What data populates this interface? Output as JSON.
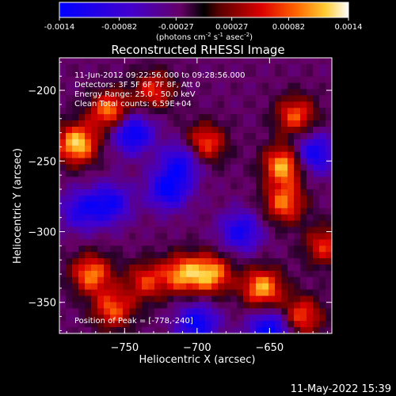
{
  "chart_data": {
    "type": "heatmap",
    "title": "Reconstructed RHESSI Image",
    "xlabel": "Heliocentric X (arcsec)",
    "ylabel": "Heliocentric Y (arcsec)",
    "xlim": [
      -795,
      -607
    ],
    "ylim": [
      -372,
      -177
    ],
    "xticks": [
      -750,
      -700,
      -650
    ],
    "yticks": [
      -200,
      -250,
      -300,
      -350
    ],
    "colorbar": {
      "ticks": [
        "-0.0014",
        "-0.00082",
        "-0.00027",
        "0.00027",
        "0.00082",
        "0.0014"
      ],
      "range": [
        -0.0014,
        0.0014
      ],
      "label_prefix": "(photons cm",
      "label_exp1": "-2",
      "label_mid1": " s",
      "label_exp2": "-1",
      "label_mid2": " asec",
      "label_exp3": "-2",
      "label_suffix": ")"
    },
    "annotations": [
      "11-Jun-2012 09:22:56.000 to 09:28:56.000",
      "Detectors: 3F 5F 6F 7F 8F, Att 0",
      "Energy Range: 25.0 - 50.0 keV",
      "Clean    Total counts: 6.59E+04"
    ],
    "peak_text": "Position of Peak = [-778,-240]",
    "bright_regions": [
      {
        "x": -783,
        "y": -238,
        "intensity": 1.0
      },
      {
        "x": -760,
        "y": -215,
        "intensity": 0.85
      },
      {
        "x": -695,
        "y": -238,
        "intensity": 0.75
      },
      {
        "x": -640,
        "y": -253,
        "intensity": 0.95
      },
      {
        "x": -632,
        "y": -218,
        "intensity": 0.7
      },
      {
        "x": -690,
        "y": -330,
        "intensity": 0.85
      },
      {
        "x": -710,
        "y": -330,
        "intensity": 0.8
      },
      {
        "x": -655,
        "y": -340,
        "intensity": 0.9
      },
      {
        "x": -640,
        "y": -280,
        "intensity": 0.75
      },
      {
        "x": -628,
        "y": -360,
        "intensity": 0.7
      },
      {
        "x": -773,
        "y": -330,
        "intensity": 0.8
      },
      {
        "x": -758,
        "y": -355,
        "intensity": 0.7
      },
      {
        "x": -735,
        "y": -335,
        "intensity": 0.6
      },
      {
        "x": -730,
        "y": -200,
        "intensity": 0.6
      },
      {
        "x": -612,
        "y": -310,
        "intensity": 0.6
      }
    ],
    "dark_regions": [
      {
        "x": -745,
        "y": -230,
        "intensity": -0.9
      },
      {
        "x": -760,
        "y": -280,
        "intensity": -0.7
      },
      {
        "x": -720,
        "y": -270,
        "intensity": -0.8
      },
      {
        "x": -670,
        "y": -300,
        "intensity": -0.7
      },
      {
        "x": -650,
        "y": -370,
        "intensity": -0.9
      },
      {
        "x": -710,
        "y": -250,
        "intensity": -0.7
      },
      {
        "x": -620,
        "y": -245,
        "intensity": -0.8
      },
      {
        "x": -780,
        "y": -285,
        "intensity": -0.6
      },
      {
        "x": -700,
        "y": -365,
        "intensity": -0.8
      }
    ]
  },
  "footer": {
    "timestamp": "11-May-2022 15:39"
  }
}
